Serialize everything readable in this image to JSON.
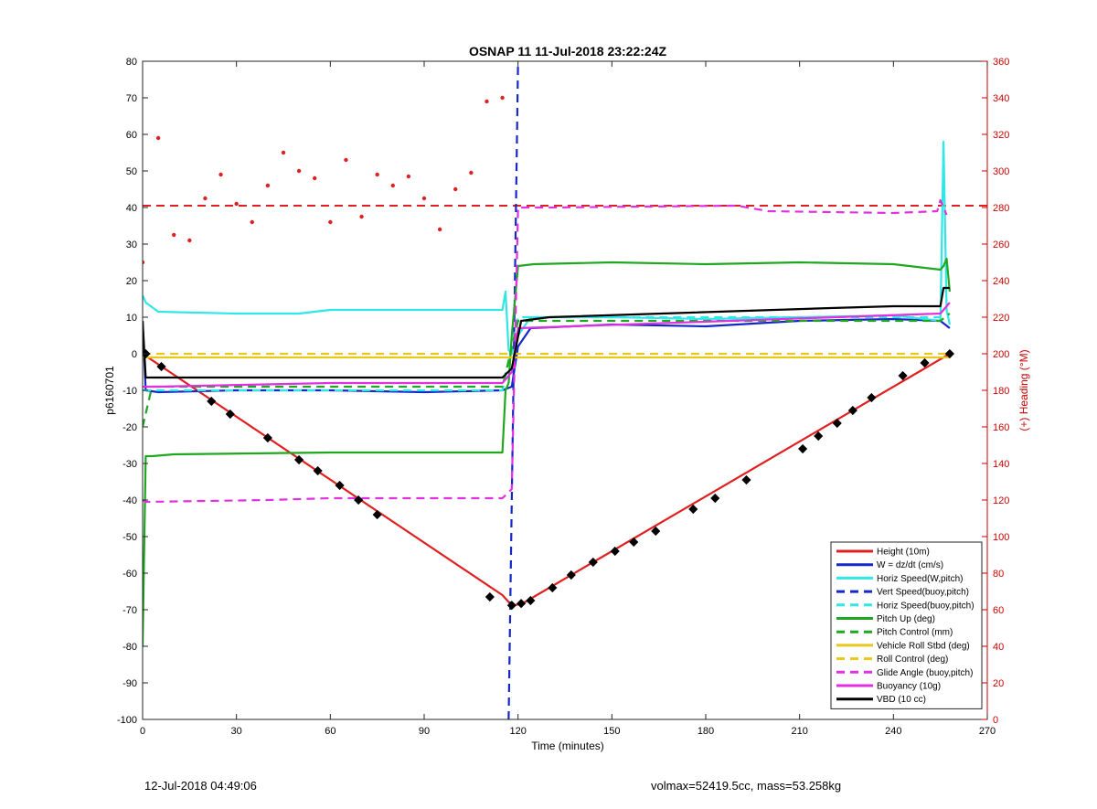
{
  "footer": {
    "left_text": "12-Jul-2018 04:49:06",
    "right_text": "volmax=52419.5cc, mass=53.258kg"
  },
  "chart_data": {
    "type": "line",
    "title": "OSNAP 11 11-Jul-2018 23:22:24Z",
    "xlabel": "Time (minutes)",
    "ylabel_left": "p6160701",
    "ylabel_right": "(+) Heading (°M)",
    "xlim": [
      0,
      270
    ],
    "ylim_left": [
      -100,
      80
    ],
    "ylim_right": [
      0,
      360
    ],
    "xticks": [
      0,
      30,
      60,
      90,
      120,
      150,
      180,
      210,
      240,
      270
    ],
    "yticks_left": [
      -100,
      -90,
      -80,
      -70,
      -60,
      -50,
      -40,
      -30,
      -20,
      -10,
      0,
      10,
      20,
      30,
      40,
      50,
      60,
      70,
      80
    ],
    "yticks_right": [
      0,
      20,
      40,
      60,
      80,
      100,
      120,
      140,
      160,
      180,
      200,
      220,
      240,
      260,
      280,
      300,
      320,
      340,
      360
    ],
    "grid": false,
    "legend_position": "bottom-right",
    "colors": {
      "height": "#e02020",
      "w": "#1428c8",
      "horiz_speed": "#30e6e6",
      "vert_speed_buoy": "#1428c8",
      "horiz_speed_buoy": "#30e6e6",
      "pitch_up": "#1fa81f",
      "pitch_control": "#1fa81f",
      "roll": "#e6c81e",
      "roll_control": "#e6c81e",
      "glide": "#e030e0",
      "buoyancy": "#e030e0",
      "vbd": "#000000",
      "heading": "#e02020",
      "right_axis": "#cc0000"
    },
    "series": [
      {
        "name": "Height (10m)",
        "style": "solid",
        "color": "#e02020",
        "x": [
          0,
          115,
          118,
          121,
          258
        ],
        "y": [
          0,
          -66,
          -68.8,
          -68.5,
          0
        ]
      },
      {
        "name": "W = dz/dt (cm/s)",
        "style": "solid",
        "color": "#1428c8",
        "x": [
          0,
          1,
          5,
          30,
          60,
          90,
          115,
          118,
          120,
          124,
          150,
          180,
          210,
          240,
          255,
          258
        ],
        "y": [
          9,
          -10,
          -10.5,
          -10,
          -10,
          -10.5,
          -10,
          -9,
          2,
          7,
          8,
          7.5,
          9,
          9.5,
          9,
          7
        ]
      },
      {
        "name": "Horiz Speed(W,pitch)",
        "style": "solid",
        "color": "#30e6e6",
        "x": [
          0,
          1,
          5,
          30,
          50,
          60,
          90,
          115,
          116,
          117,
          118,
          120,
          124,
          150,
          180,
          210,
          240,
          255,
          256,
          257,
          258
        ],
        "y": [
          16,
          14,
          11.5,
          11,
          11,
          12,
          12,
          12,
          17,
          1,
          0,
          5,
          10,
          10,
          9.5,
          10,
          10.5,
          9,
          58,
          12,
          8
        ]
      },
      {
        "name": "Vert Speed(buoy,pitch)",
        "style": "dash",
        "color": "#1428c8",
        "x": [
          117,
          120
        ],
        "y": [
          -100,
          80
        ]
      },
      {
        "name": "Horiz Speed(buoy,pitch)",
        "style": "dash",
        "color": "#30e6e6",
        "x": [
          0,
          5,
          115,
          120,
          255
        ],
        "y": [
          -10,
          -10,
          -10,
          10,
          10
        ]
      },
      {
        "name": "Pitch Up (deg)",
        "style": "solid",
        "color": "#1fa81f",
        "x": [
          0,
          1,
          3,
          10,
          60,
          115,
          116,
          117,
          118,
          120,
          125,
          150,
          180,
          210,
          240,
          255,
          256,
          257,
          258
        ],
        "y": [
          -80,
          -28,
          -28,
          -27.5,
          -27,
          -27,
          -10,
          -8,
          5,
          24,
          24.5,
          25,
          24.5,
          25,
          24.5,
          23,
          24,
          26,
          17
        ]
      },
      {
        "name": "Pitch Control (mm)",
        "style": "dash",
        "color": "#1fa81f",
        "x": [
          0,
          3,
          115,
          120,
          255,
          258
        ],
        "y": [
          -20,
          -9,
          -9,
          9,
          9,
          11
        ]
      },
      {
        "name": "Vehicle Roll Stbd (deg)",
        "style": "solid",
        "color": "#e6c81e",
        "x": [
          0,
          258
        ],
        "y": [
          -1,
          -1
        ]
      },
      {
        "name": "Roll Control (deg)",
        "style": "dash",
        "color": "#e6c81e",
        "x": [
          0,
          258
        ],
        "y": [
          0,
          0
        ]
      },
      {
        "name": "Glide Angle (buoy,pitch)",
        "style": "dash",
        "color": "#e030e0",
        "x": [
          0,
          1,
          40,
          60,
          115,
          118,
          120,
          130,
          190,
          200,
          240,
          254,
          255,
          256,
          257
        ],
        "y": [
          -40,
          -40.5,
          -40,
          -39.5,
          -39.5,
          -37,
          40,
          40,
          40.5,
          39,
          38.5,
          39,
          42,
          40,
          38
        ]
      },
      {
        "name": "Buoyancy (10g)",
        "style": "solid",
        "color": "#e030e0",
        "x": [
          0,
          5,
          60,
          115,
          118,
          120,
          255,
          258
        ],
        "y": [
          -9,
          -9,
          -8,
          -8,
          -5,
          7,
          11,
          14
        ]
      },
      {
        "name": "VBD (10 cc)",
        "style": "solid",
        "color": "#000000",
        "x": [
          0,
          1,
          115,
          118,
          121,
          130,
          220,
          240,
          255,
          256,
          258
        ],
        "y": [
          9,
          -6.5,
          -6.5,
          -4,
          9,
          10,
          12.5,
          13,
          13,
          18,
          18
        ]
      }
    ],
    "heading_series": {
      "name": "(+) Heading (°M)",
      "axis": "right",
      "style": "dots",
      "color": "#e02020",
      "reference_value": 281,
      "x": [
        0,
        5,
        10,
        15,
        20,
        25,
        30,
        35,
        40,
        45,
        50,
        55,
        60,
        65,
        70,
        75,
        80,
        85,
        90,
        95,
        100,
        105,
        110,
        115
      ],
      "y": [
        250,
        318,
        265,
        262,
        285,
        298,
        282,
        272,
        292,
        310,
        300,
        296,
        272,
        306,
        275,
        298,
        292,
        297,
        285,
        268,
        290,
        299,
        338,
        340
      ]
    },
    "profile_markers": {
      "style": "black-diamond",
      "x": [
        1,
        6,
        22,
        28,
        40,
        50,
        56,
        63,
        69,
        75,
        111,
        118,
        121,
        124,
        131,
        137,
        144,
        151,
        157,
        164,
        176,
        183,
        193,
        211,
        216,
        222,
        227,
        233,
        243,
        250,
        258
      ],
      "y": [
        0,
        -3.5,
        -13,
        -16.5,
        -23,
        -29,
        -32,
        -36,
        -40,
        -44,
        -66.5,
        -68.8,
        -68.3,
        -67.5,
        -64,
        -60.5,
        -57,
        -54,
        -51.5,
        -48.5,
        -42.5,
        -39.5,
        -34.5,
        -26,
        -22.5,
        -19,
        -15.5,
        -12,
        -6,
        -2.5,
        0
      ]
    }
  }
}
